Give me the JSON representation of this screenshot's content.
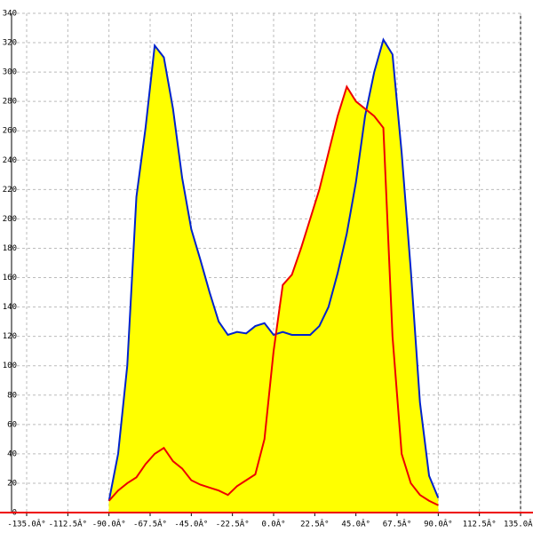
{
  "chart_data": {
    "type": "line",
    "fill_color": "#ffff00",
    "grid": true,
    "xlim": [
      -135,
      135
    ],
    "ylim": [
      0,
      340
    ],
    "xticks": [
      {
        "value": -135,
        "label": "-135.0Â°"
      },
      {
        "value": -112.5,
        "label": "-112.5Â°"
      },
      {
        "value": -90,
        "label": "-90.0Â°"
      },
      {
        "value": -67.5,
        "label": "-67.5Â°"
      },
      {
        "value": -45,
        "label": "-45.0Â°"
      },
      {
        "value": -22.5,
        "label": "-22.5Â°"
      },
      {
        "value": 0,
        "label": "0.0Â°"
      },
      {
        "value": 22.5,
        "label": "22.5Â°"
      },
      {
        "value": 45,
        "label": "45.0Â°"
      },
      {
        "value": 67.5,
        "label": "67.5Â°"
      },
      {
        "value": 90,
        "label": "90.0Â°"
      },
      {
        "value": 112.5,
        "label": "112.5Â°"
      },
      {
        "value": 135,
        "label": "135.0Â°"
      }
    ],
    "yticks": [
      0,
      20,
      40,
      60,
      80,
      100,
      120,
      140,
      160,
      180,
      200,
      220,
      240,
      260,
      280,
      300,
      320,
      340
    ],
    "x": [
      -90,
      -85,
      -80,
      -75,
      -70,
      -65,
      -60,
      -55,
      -50,
      -45,
      -40,
      -35,
      -30,
      -25,
      -20,
      -15,
      -10,
      -5,
      0,
      5,
      10,
      15,
      20,
      25,
      30,
      35,
      40,
      45,
      50,
      55,
      60,
      65,
      70,
      75,
      80,
      85,
      90
    ],
    "series": [
      {
        "color": "#0022cc",
        "values": [
          8,
          40,
          100,
          215,
          262,
          318,
          310,
          275,
          228,
          193,
          172,
          150,
          130,
          121,
          123,
          122,
          127,
          129,
          121,
          123,
          121,
          121,
          121,
          127,
          140,
          163,
          190,
          225,
          270,
          300,
          322,
          312,
          245,
          165,
          75,
          25,
          10
        ]
      },
      {
        "color": "#ee0000",
        "values": [
          8,
          15,
          20,
          24,
          33,
          40,
          44,
          35,
          30,
          22,
          19,
          17,
          15,
          12,
          18,
          22,
          26,
          50,
          110,
          155,
          162,
          180,
          200,
          220,
          245,
          270,
          290,
          280,
          275,
          270,
          262,
          120,
          40,
          20,
          12,
          8,
          5
        ]
      }
    ]
  }
}
